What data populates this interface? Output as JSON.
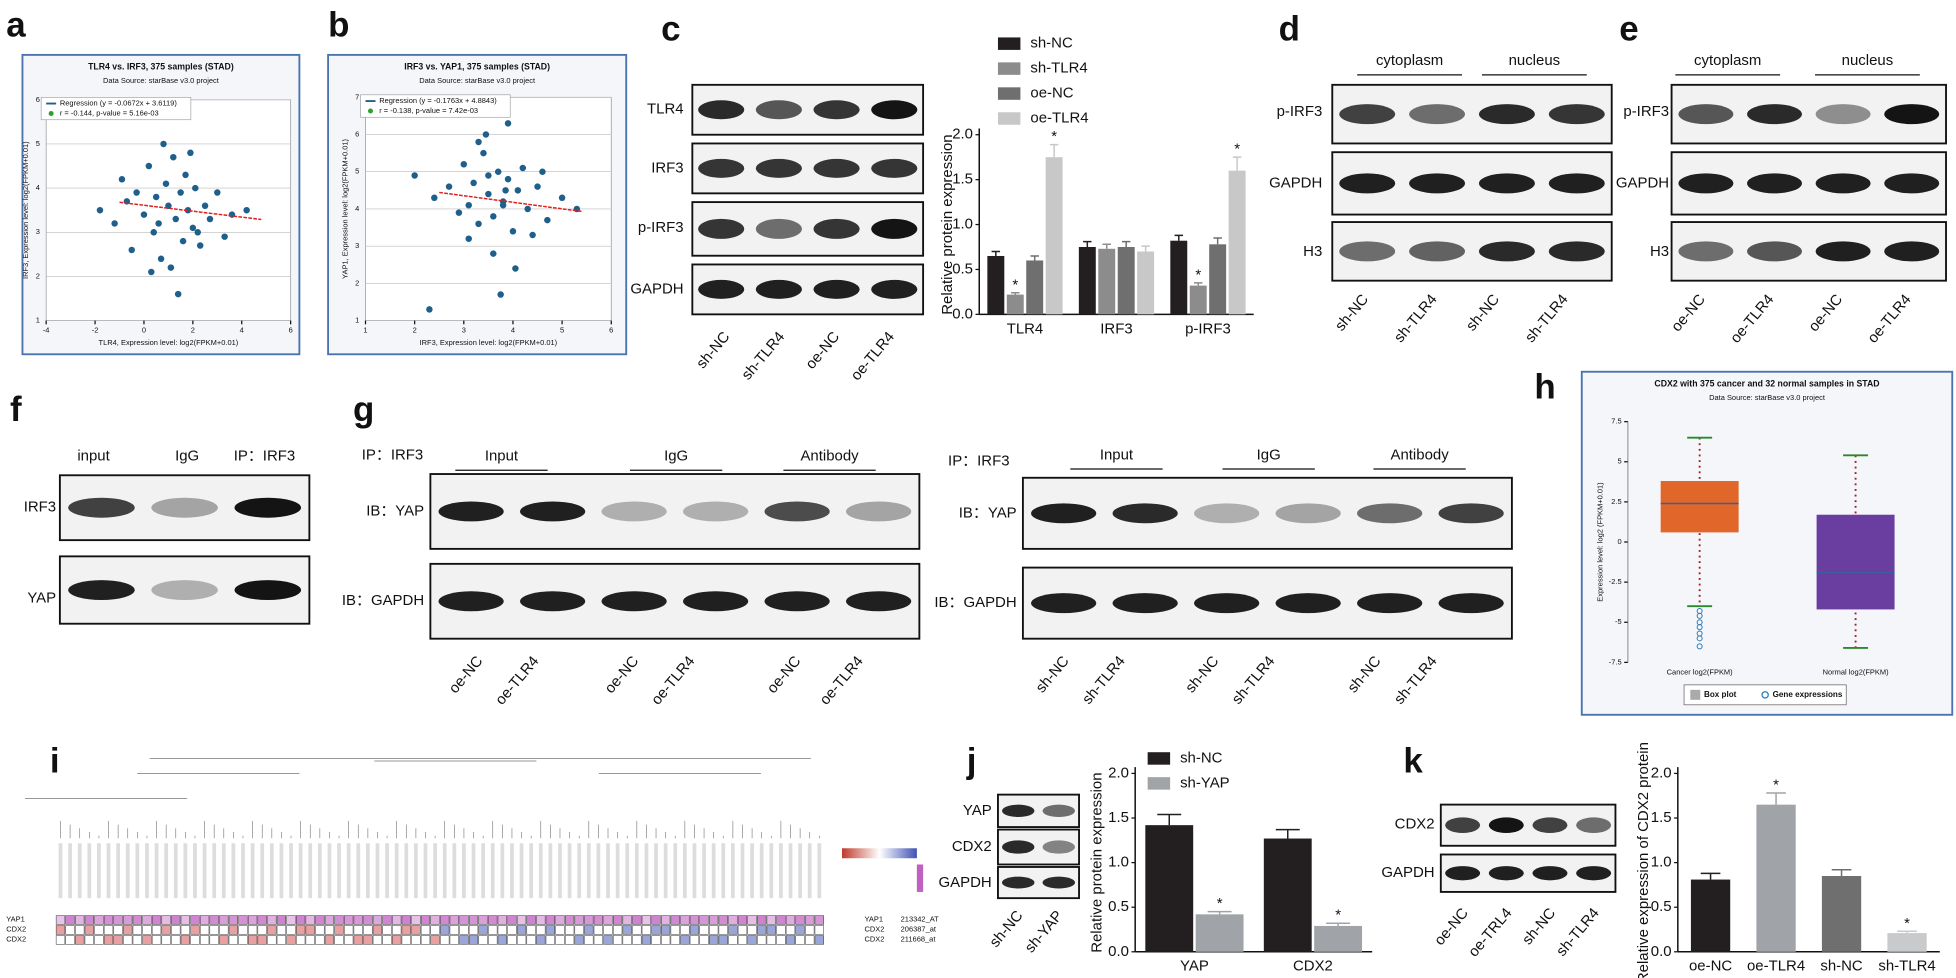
{
  "panel_letters": [
    "a",
    "b",
    "c",
    "d",
    "e",
    "f",
    "g",
    "h",
    "i",
    "j",
    "k"
  ],
  "chart_data": [
    {
      "type": "scatter",
      "title": "TLR4 vs. IRF3, 375 samples (STAD)",
      "subtitle": "Data Source: starBase v3.0 project",
      "x_label": "TLR4, Expression level: log2(FPKM+0.01)",
      "y_label": "IRF3, Expression level: log2(FPKM+0.01)",
      "legend": [
        "Regression (y = -0.0672x + 3.6119)",
        "r = -0.144, p-value = 5.16e-03"
      ],
      "regression": {
        "slope": -0.0672,
        "intercept": 3.6119
      },
      "xlim": [
        -4,
        6
      ],
      "xticks": [
        -4,
        -2,
        0,
        2,
        4,
        6
      ],
      "ylim": [
        1,
        6
      ],
      "yticks": [
        1,
        2,
        3,
        4,
        5,
        6
      ],
      "grid": true,
      "color": "#1f5f8b",
      "x": [
        -1.8,
        -1.2,
        -0.9,
        -0.5,
        -0.3,
        0,
        0.2,
        0.4,
        0.5,
        0.7,
        0.9,
        1,
        1.1,
        1.2,
        1.3,
        1.5,
        1.6,
        1.7,
        1.8,
        2,
        2.1,
        2.3,
        2.5,
        2.7,
        3,
        3.3,
        3.6,
        4.2,
        0.8,
        1.4,
        0.3,
        1.9,
        2.2,
        -0.7,
        0.6
      ],
      "values": [
        3.5,
        3.2,
        4.2,
        2.6,
        3.9,
        3.4,
        4.5,
        3.0,
        3.8,
        2.4,
        4.1,
        3.6,
        2.2,
        4.7,
        3.3,
        3.9,
        2.8,
        4.3,
        3.5,
        3.1,
        4.0,
        2.7,
        3.6,
        3.3,
        3.9,
        2.9,
        3.4,
        3.5,
        5.0,
        1.6,
        2.1,
        4.8,
        3.0,
        3.7,
        3.2
      ]
    },
    {
      "type": "scatter",
      "title": "IRF3 vs. YAP1, 375 samples (STAD)",
      "subtitle": "Data Source: starBase v3.0 project",
      "x_label": "IRF3, Expression level: log2(FPKM+0.01)",
      "y_label": "YAP1, Expression level: log2(FPKM+0.01)",
      "legend": [
        "Regression (y = -0.1763x + 4.8843)",
        "r = -0.138, p-value = 7.42e-03"
      ],
      "regression": {
        "slope": -0.1763,
        "intercept": 4.8843
      },
      "xlim": [
        1,
        6
      ],
      "xticks": [
        1,
        2,
        3,
        4,
        5,
        6
      ],
      "ylim": [
        1,
        7
      ],
      "yticks": [
        1,
        2,
        3,
        4,
        5,
        6,
        7
      ],
      "grid": true,
      "color": "#1f5f8b",
      "x": [
        2.0,
        2.4,
        2.7,
        2.9,
        3.0,
        3.1,
        3.2,
        3.3,
        3.4,
        3.5,
        3.6,
        3.7,
        3.8,
        3.9,
        4.0,
        4.1,
        4.2,
        4.3,
        4.5,
        4.7,
        5.0,
        5.3,
        3.3,
        3.6,
        3.9,
        3.5,
        4.4,
        3.75,
        2.3,
        3.8,
        3.1,
        4.6,
        3.45,
        4.05,
        3.85
      ],
      "values": [
        4.9,
        4.3,
        4.6,
        3.9,
        5.2,
        4.1,
        4.7,
        3.6,
        5.5,
        4.4,
        3.8,
        5.0,
        4.2,
        4.8,
        3.4,
        4.5,
        5.1,
        4.0,
        4.6,
        3.7,
        4.3,
        4.0,
        5.8,
        2.8,
        6.3,
        4.9,
        3.3,
        1.7,
        1.3,
        4.1,
        3.2,
        5.0,
        6.0,
        2.4,
        4.5
      ]
    },
    {
      "type": "bar",
      "y_label": "Relative protein expression",
      "categories": [
        "TLR4",
        "IRF3",
        "p-IRF3"
      ],
      "ylim": [
        0,
        2
      ],
      "yticks": [
        {
          "value": 0,
          "label": "0.0"
        },
        {
          "value": 0.5,
          "label": "0.5"
        },
        {
          "value": 1,
          "label": "1.0"
        },
        {
          "value": 1.5,
          "label": "1.5"
        },
        {
          "value": 2,
          "label": "2.0"
        }
      ],
      "series": [
        {
          "name": "sh-NC",
          "color": "#231f20",
          "values": [
            0.65,
            0.75,
            0.82
          ],
          "errors": [
            0.05,
            0.06,
            0.06
          ],
          "stars": [
            null,
            null,
            null
          ]
        },
        {
          "name": "sh-TLR4",
          "color": "#8c8c8c",
          "values": [
            0.22,
            0.73,
            0.32
          ],
          "errors": [
            0.02,
            0.05,
            0.03
          ],
          "stars": [
            "*",
            null,
            "*"
          ]
        },
        {
          "name": "oe-NC",
          "color": "#6f6f6f",
          "values": [
            0.6,
            0.75,
            0.78
          ],
          "errors": [
            0.05,
            0.06,
            0.07
          ],
          "stars": [
            null,
            null,
            null
          ]
        },
        {
          "name": "oe-TLR4",
          "color": "#c8c8c8",
          "values": [
            1.75,
            0.7,
            1.6
          ],
          "errors": [
            0.14,
            0.06,
            0.15
          ],
          "stars": [
            "*",
            null,
            "*"
          ]
        }
      ]
    },
    {
      "type": "box",
      "title": "CDX2 with 375 cancer and 32 normal samples in STAD",
      "subtitle": "Data Source: starBase v3.0 project",
      "y_label": "Expression level: log2 (FPKM+0.01)",
      "categories": [
        "Cancer log2(FPKM)",
        "Normal log2(FPKM)"
      ],
      "legend": [
        "Box plot",
        "Gene expressions"
      ],
      "ylim": [
        -7.5,
        7.5
      ],
      "yticks": [
        -7.5,
        -5,
        -2.5,
        0,
        2.5,
        5,
        7.5
      ],
      "boxes": [
        {
          "color": "#e0662a",
          "low": -4,
          "q1": 0.6,
          "median": 2.4,
          "q3": 3.8,
          "high": 6.5,
          "outliers": [
            -4.3,
            -4.6,
            -5,
            -5.3,
            -5.7,
            -6,
            -6.5
          ]
        },
        {
          "color": "#6a3ea1",
          "low": -6.6,
          "q1": -4.2,
          "median": -1.9,
          "q3": 1.7,
          "high": 5.4,
          "outliers": []
        }
      ]
    },
    {
      "type": "bar",
      "y_label": "Relative protein expression",
      "categories": [
        "YAP",
        "CDX2"
      ],
      "ylim": [
        0,
        2
      ],
      "yticks": [
        {
          "value": 0,
          "label": "0.0"
        },
        {
          "value": 0.5,
          "label": "0.5"
        },
        {
          "value": 1,
          "label": "1.0"
        },
        {
          "value": 1.5,
          "label": "1.5"
        },
        {
          "value": 2,
          "label": "2.0"
        }
      ],
      "series": [
        {
          "name": "sh-NC",
          "color": "#231f20",
          "values": [
            1.42,
            1.27
          ],
          "errors": [
            0.12,
            0.1
          ],
          "stars": [
            null,
            null
          ]
        },
        {
          "name": "sh-YAP",
          "color": "#a0a4a8",
          "values": [
            0.42,
            0.29
          ],
          "errors": [
            0.03,
            0.03
          ],
          "stars": [
            "*",
            "*"
          ]
        }
      ]
    },
    {
      "type": "bar",
      "y_label": "Relative expression of CDX2 protein",
      "categories": [
        "oe-NC",
        "oe-TLR4",
        "sh-NC",
        "sh-TLR4"
      ],
      "ylim": [
        0,
        2
      ],
      "yticks": [
        {
          "value": 0,
          "label": "0.0"
        },
        {
          "value": 0.5,
          "label": "0.5"
        },
        {
          "value": 1,
          "label": "1.0"
        },
        {
          "value": 1.5,
          "label": "1.5"
        },
        {
          "value": 2,
          "label": "2.0"
        }
      ],
      "series": [
        {
          "colors": [
            "#231f20",
            "#a0a4a8",
            "#6f6f6f",
            "#c8cacc"
          ],
          "values": [
            0.81,
            1.65,
            0.85,
            0.21
          ],
          "errors": [
            0.07,
            0.13,
            0.07,
            0.02
          ],
          "stars": [
            null,
            "*",
            null,
            "*"
          ]
        }
      ]
    }
  ],
  "blots": {
    "c": {
      "rows": [
        "TLR4",
        "IRF3",
        "p-IRF3",
        "GAPDH"
      ],
      "lanes": [
        "sh-NC",
        "sh-TLR4",
        "oe-NC",
        "oe-TLR4"
      ]
    },
    "d": {
      "groups": [
        "cytoplasm",
        "nucleus"
      ],
      "rows": [
        "p-IRF3",
        "GAPDH",
        "H3"
      ],
      "lanes": [
        "sh-NC",
        "sh-TLR4",
        "sh-NC",
        "sh-TLR4"
      ]
    },
    "e": {
      "groups": [
        "cytoplasm",
        "nucleus"
      ],
      "rows": [
        "p-IRF3",
        "GAPDH",
        "H3"
      ],
      "lanes": [
        "oe-NC",
        "oe-TLR4",
        "oe-NC",
        "oe-TLR4"
      ]
    },
    "f": {
      "groups": [
        "input",
        "IgG",
        "IP：IRF3"
      ],
      "rows": [
        "IRF3",
        "YAP"
      ]
    },
    "g1": {
      "ip": "IP：IRF3",
      "groups": [
        "Input",
        "IgG",
        "Antibody"
      ],
      "rows": [
        "IB：YAP",
        "IB：GAPDH"
      ],
      "lanes": [
        "oe-NC",
        "oe-TLR4",
        "oe-NC",
        "oe-TLR4",
        "oe-NC",
        "oe-TLR4"
      ]
    },
    "g2": {
      "ip": "IP：IRF3",
      "groups": [
        "Input",
        "IgG",
        "Antibody"
      ],
      "rows": [
        "IB：YAP",
        "IB：GAPDH"
      ],
      "lanes": [
        "sh-NC",
        "sh-TLR4",
        "sh-NC",
        "sh-TLR4",
        "sh-NC",
        "sh-TLR4"
      ]
    },
    "j": {
      "rows": [
        "YAP",
        "CDX2",
        "GAPDH"
      ],
      "lanes": [
        "sh-NC",
        "sh-YAP"
      ]
    },
    "k": {
      "rows": [
        "CDX2",
        "GAPDH"
      ],
      "lanes": [
        "oe-NC",
        "oe-TRL4",
        "sh-NC",
        "sh-TLR4"
      ]
    }
  },
  "heatmap": {
    "rows": [
      "YAP1",
      "CDX2",
      "CDX2"
    ],
    "probes": [
      "213342_AT",
      "206387_at",
      "211668_at"
    ]
  }
}
